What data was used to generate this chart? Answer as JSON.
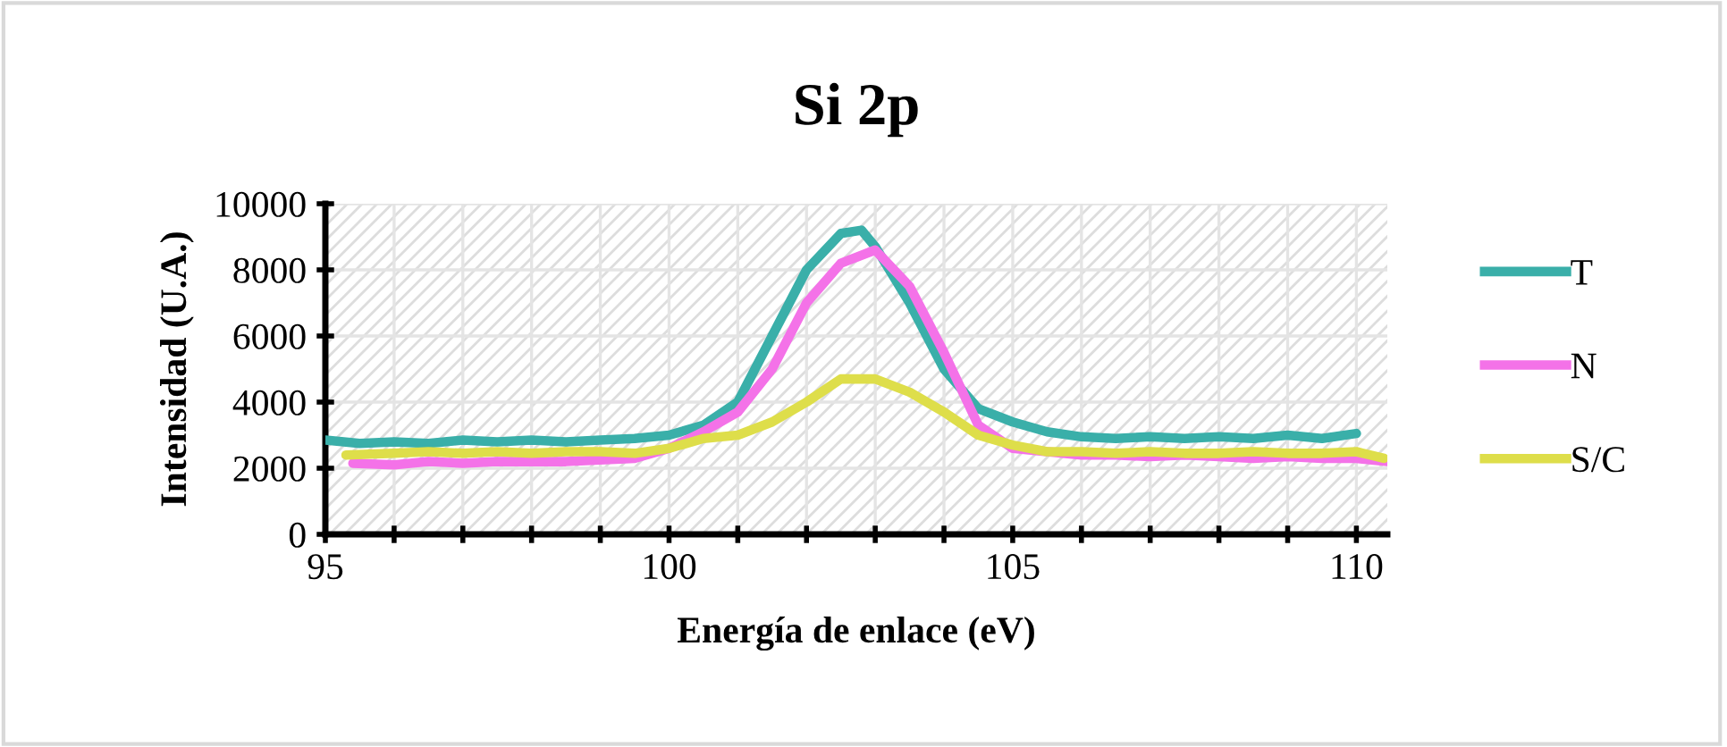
{
  "chart_data": {
    "type": "line",
    "title": "Si 2p",
    "xlabel": "Energía de enlace (eV)",
    "ylabel": "Intensidad (U.A.)",
    "xlim": [
      95,
      110.45
    ],
    "ylim": [
      0,
      10000
    ],
    "xticks": [
      95,
      {
        "value": 96,
        "label": null
      },
      {
        "value": 97,
        "label": null
      },
      {
        "value": 98,
        "label": null
      },
      {
        "value": 99,
        "label": null
      },
      100,
      {
        "value": 101,
        "label": null
      },
      {
        "value": 102,
        "label": null
      },
      {
        "value": 103,
        "label": null
      },
      {
        "value": 104,
        "label": null
      },
      105,
      {
        "value": 106,
        "label": null
      },
      {
        "value": 107,
        "label": null
      },
      {
        "value": 108,
        "label": null
      },
      {
        "value": 109,
        "label": null
      },
      110
    ],
    "yticks": [
      0,
      2000,
      4000,
      6000,
      8000,
      10000
    ],
    "grid": true,
    "legend": "right",
    "marker": "none",
    "line_style": "solid",
    "series": [
      {
        "name": "T",
        "color": "#3aafa9",
        "x": [
          95,
          95.5,
          96,
          96.5,
          97,
          97.5,
          98,
          98.5,
          99,
          99.5,
          100,
          100.5,
          101,
          101.5,
          102,
          102.5,
          102.8,
          103,
          103.5,
          104,
          104.5,
          105,
          105.5,
          106,
          106.5,
          107,
          107.5,
          108,
          108.5,
          109,
          109.5,
          110
        ],
        "values": [
          2850,
          2750,
          2800,
          2750,
          2850,
          2800,
          2850,
          2800,
          2850,
          2900,
          3000,
          3300,
          4000,
          6000,
          8000,
          9100,
          9200,
          8700,
          7000,
          5000,
          3800,
          3400,
          3100,
          2950,
          2900,
          2950,
          2900,
          2950,
          2900,
          3000,
          2900,
          3050
        ]
      },
      {
        "name": "N",
        "color": "#f472e8",
        "x": [
          95.4,
          96,
          96.5,
          97,
          97.5,
          98,
          98.5,
          99,
          99.5,
          100,
          100.5,
          101,
          101.5,
          102,
          102.5,
          103,
          103.5,
          104,
          104.5,
          105,
          105.5,
          106,
          106.5,
          107,
          107.5,
          108,
          108.5,
          109,
          109.5,
          110,
          110.45
        ],
        "values": [
          2150,
          2100,
          2200,
          2150,
          2200,
          2200,
          2200,
          2250,
          2300,
          2600,
          3100,
          3700,
          5000,
          7000,
          8200,
          8600,
          7500,
          5500,
          3300,
          2600,
          2500,
          2400,
          2400,
          2350,
          2400,
          2350,
          2300,
          2350,
          2300,
          2300,
          2200
        ]
      },
      {
        "name": "S/C",
        "color": "#dede4a",
        "x": [
          95.3,
          96,
          96.5,
          97,
          97.5,
          98,
          98.5,
          99,
          99.5,
          100,
          100.5,
          101,
          101.5,
          102,
          102.5,
          103,
          103.5,
          104,
          104.5,
          105,
          105.5,
          106,
          106.5,
          107,
          107.5,
          108,
          108.5,
          109,
          109.5,
          110,
          110.4
        ],
        "values": [
          2400,
          2450,
          2500,
          2450,
          2500,
          2450,
          2500,
          2500,
          2450,
          2600,
          2900,
          3000,
          3400,
          4000,
          4700,
          4700,
          4300,
          3700,
          3000,
          2700,
          2500,
          2500,
          2450,
          2500,
          2450,
          2450,
          2500,
          2450,
          2450,
          2500,
          2300
        ]
      }
    ]
  }
}
